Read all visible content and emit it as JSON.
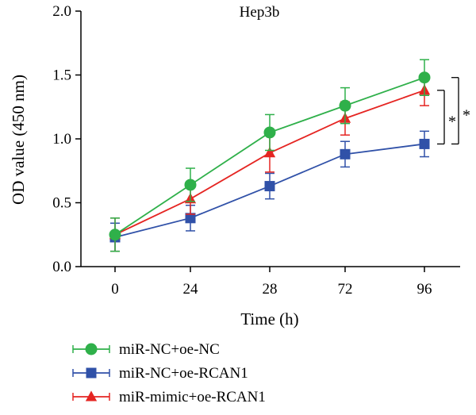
{
  "chart_data": {
    "type": "line",
    "title": "Hep3b",
    "xlabel": "Time (h)",
    "ylabel": "OD value (450 nm)",
    "categories": [
      "0",
      "24",
      "28",
      "72",
      "96"
    ],
    "ylim": [
      0,
      2.0
    ],
    "yticks": [
      "0.0",
      "0.5",
      "1.0",
      "1.5",
      "2.0"
    ],
    "grid": false,
    "legend_position": "bottom-left",
    "series": [
      {
        "name": "miR-NC+oe-NC",
        "color": "#2fb04a",
        "marker": "circle",
        "values": [
          0.25,
          0.64,
          1.05,
          1.26,
          1.48
        ],
        "errors": [
          0.13,
          0.13,
          0.14,
          0.14,
          0.14
        ]
      },
      {
        "name": "miR-NC+oe-RCAN1",
        "color": "#3051a8",
        "marker": "square",
        "values": [
          0.23,
          0.38,
          0.63,
          0.88,
          0.96
        ],
        "errors": [
          0.11,
          0.1,
          0.1,
          0.1,
          0.1
        ]
      },
      {
        "name": "miR-mimic+oe-RCAN1",
        "color": "#e52522",
        "marker": "triangle",
        "values": [
          0.25,
          0.53,
          0.89,
          1.16,
          1.38
        ],
        "errors": [
          0.13,
          0.12,
          0.15,
          0.13,
          0.12
        ]
      }
    ],
    "annotations": [
      {
        "text": "*",
        "between": [
          "miR-mimic+oe-RCAN1",
          "miR-NC+oe-RCAN1"
        ]
      },
      {
        "text": "*",
        "between": [
          "miR-NC+oe-NC",
          "miR-NC+oe-RCAN1"
        ]
      }
    ]
  }
}
